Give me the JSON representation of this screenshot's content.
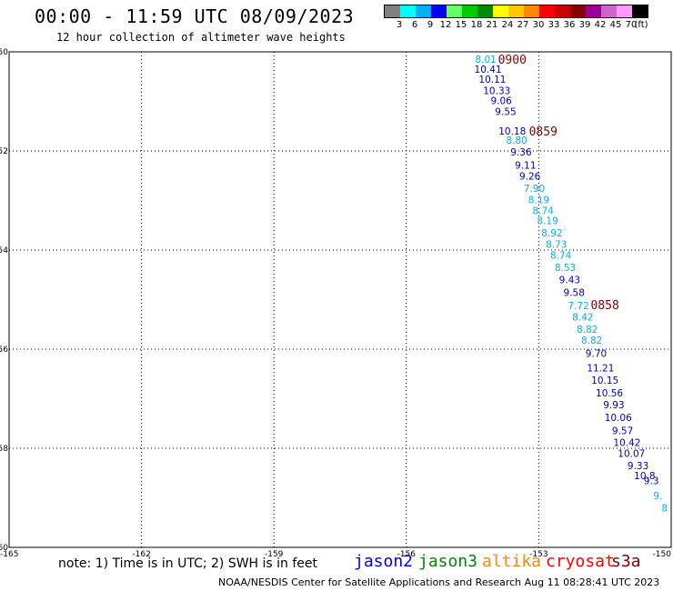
{
  "header": {
    "title": "00:00 - 11:59 UTC 08/09/2023",
    "subtitle": "12 hour collection of altimeter wave heights"
  },
  "color_scale": {
    "colors": [
      "#808080",
      "#00ffff",
      "#00b0f0",
      "#0000ff",
      "#66ff66",
      "#00cc00",
      "#008800",
      "#ffff00",
      "#ffc800",
      "#ff8800",
      "#ff0000",
      "#cc0000",
      "#880000",
      "#990099",
      "#cc66cc",
      "#ff99ff",
      "#000000"
    ],
    "labels": [
      "3",
      "6",
      "9",
      "12",
      "15",
      "18",
      "21",
      "24",
      "27",
      "30",
      "33",
      "36",
      "39",
      "42",
      "45",
      "70",
      "(ft)"
    ]
  },
  "chart_data": {
    "type": "scatter",
    "title": "00:00 - 11:59 UTC 08/09/2023",
    "xlim": [
      -165,
      -150
    ],
    "ylim": [
      -60,
      -50
    ],
    "x_ticks": [
      "-165",
      "-162",
      "-159",
      "-156",
      "-153",
      "-150"
    ],
    "y_ticks": [
      "-50",
      "-52",
      "-54",
      "-56",
      "-58",
      "-60"
    ],
    "grid": true,
    "points": [
      {
        "lon": -154.2,
        "lat": -50.15,
        "v": "8.01",
        "c": "#00b0f0"
      },
      {
        "lon": -154.15,
        "lat": -50.35,
        "v": "10.41",
        "c": "#0000cc"
      },
      {
        "lon": -154.05,
        "lat": -50.55,
        "v": "10.11",
        "c": "#0000cc"
      },
      {
        "lon": -153.95,
        "lat": -50.78,
        "v": "10.33",
        "c": "#0000cc"
      },
      {
        "lon": -153.85,
        "lat": -50.98,
        "v": "9.06",
        "c": "#0000cc"
      },
      {
        "lon": -153.75,
        "lat": -51.2,
        "v": "9.55",
        "c": "#0000cc"
      },
      {
        "lon": -153.6,
        "lat": -51.6,
        "v": "10.18",
        "c": "#0000cc"
      },
      {
        "lon": -153.5,
        "lat": -51.78,
        "v": "8.80",
        "c": "#00b0f0"
      },
      {
        "lon": -153.4,
        "lat": -52.02,
        "v": "9.36",
        "c": "#0000cc"
      },
      {
        "lon": -153.3,
        "lat": -52.28,
        "v": "9.11",
        "c": "#0000cc"
      },
      {
        "lon": -153.2,
        "lat": -52.5,
        "v": "9.26",
        "c": "#0000cc"
      },
      {
        "lon": -153.1,
        "lat": -52.75,
        "v": "7.90",
        "c": "#00b0f0"
      },
      {
        "lon": -153.0,
        "lat": -52.98,
        "v": "8.19",
        "c": "#00b0f0"
      },
      {
        "lon": -152.9,
        "lat": -53.2,
        "v": "8.74",
        "c": "#00b0f0"
      },
      {
        "lon": -152.8,
        "lat": -53.4,
        "v": "8.19",
        "c": "#00b0f0"
      },
      {
        "lon": -152.7,
        "lat": -53.65,
        "v": "8.92",
        "c": "#00b0f0"
      },
      {
        "lon": -152.6,
        "lat": -53.88,
        "v": "8.73",
        "c": "#00b0f0"
      },
      {
        "lon": -152.5,
        "lat": -54.1,
        "v": "8.74",
        "c": "#00b0f0"
      },
      {
        "lon": -152.4,
        "lat": -54.35,
        "v": "8.53",
        "c": "#00b0f0"
      },
      {
        "lon": -152.3,
        "lat": -54.6,
        "v": "9.43",
        "c": "#0000cc"
      },
      {
        "lon": -152.2,
        "lat": -54.85,
        "v": "9.58",
        "c": "#0000cc"
      },
      {
        "lon": -152.1,
        "lat": -55.12,
        "v": "7.72",
        "c": "#00b0f0"
      },
      {
        "lon": -152.0,
        "lat": -55.35,
        "v": "8.42",
        "c": "#00b0f0"
      },
      {
        "lon": -151.9,
        "lat": -55.6,
        "v": "8.82",
        "c": "#00b0f0"
      },
      {
        "lon": -151.8,
        "lat": -55.82,
        "v": "8.82",
        "c": "#00b0f0"
      },
      {
        "lon": -151.7,
        "lat": -56.08,
        "v": "9.70",
        "c": "#0000cc"
      },
      {
        "lon": -151.6,
        "lat": -56.38,
        "v": "11.21",
        "c": "#0000cc"
      },
      {
        "lon": -151.5,
        "lat": -56.62,
        "v": "10.15",
        "c": "#0000cc"
      },
      {
        "lon": -151.4,
        "lat": -56.88,
        "v": "10.56",
        "c": "#0000cc"
      },
      {
        "lon": -151.3,
        "lat": -57.12,
        "v": "9.93",
        "c": "#0000cc"
      },
      {
        "lon": -151.2,
        "lat": -57.38,
        "v": "10.06",
        "c": "#0000cc"
      },
      {
        "lon": -151.1,
        "lat": -57.64,
        "v": "9.57",
        "c": "#0000cc"
      },
      {
        "lon": -151.0,
        "lat": -57.88,
        "v": "10.42",
        "c": "#0000cc"
      },
      {
        "lon": -150.9,
        "lat": -58.1,
        "v": "10.07",
        "c": "#0000cc"
      },
      {
        "lon": -150.75,
        "lat": -58.35,
        "v": "9.33",
        "c": "#0000cc"
      },
      {
        "lon": -150.6,
        "lat": -58.55,
        "v": "10.8",
        "c": "#0000cc"
      },
      {
        "lon": -150.45,
        "lat": -58.65,
        "v": "9.3",
        "c": "#0000cc"
      },
      {
        "lon": -150.3,
        "lat": -58.95,
        "v": "9.",
        "c": "#00b0f0"
      },
      {
        "lon": -150.15,
        "lat": -59.2,
        "v": "8",
        "c": "#00b0f0"
      }
    ],
    "time_labels": [
      {
        "lon": -153.6,
        "lat": -50.15,
        "t": "0900"
      },
      {
        "lon": -152.9,
        "lat": -51.6,
        "t": "0859"
      },
      {
        "lon": -151.5,
        "lat": -55.1,
        "t": "0858"
      }
    ]
  },
  "footer": {
    "note": "note: 1) Time is in UTC; 2) SWH is in feet",
    "legend": [
      {
        "name": "jason2",
        "color": "#0000ff"
      },
      {
        "name": "jason3",
        "color": "#008800"
      },
      {
        "name": "altika",
        "color": "#ff8800"
      },
      {
        "name": "cryosat",
        "color": "#ff0000"
      },
      {
        "name": "s3a",
        "color": "#880000"
      }
    ],
    "credit": "NOAA/NESDIS Center for Satellite Applications and Research     Aug 11 08:28:41 UTC 2023"
  }
}
